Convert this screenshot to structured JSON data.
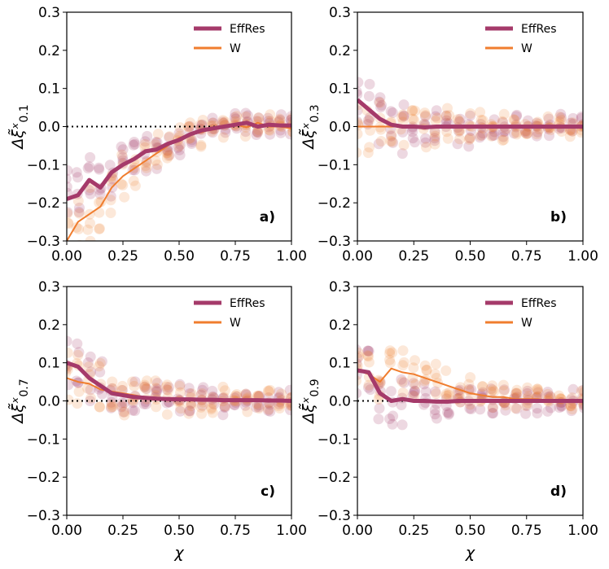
{
  "chart_data": [
    {
      "type": "scatter",
      "panel_label": "a)",
      "ylabel": "Δξ̃ˣ",
      "ylabel_sub": "0.1",
      "xlabel": "",
      "xlim": [
        0,
        1
      ],
      "ylim": [
        -0.3,
        0.3
      ],
      "xticks": [
        "0.00",
        "0.25",
        "0.50",
        "0.75",
        "1.00"
      ],
      "yticks": [
        "−0.3",
        "−0.2",
        "−0.1",
        "0.0",
        "0.1",
        "0.2",
        "0.3"
      ],
      "reference_line_y": 0,
      "legend_position": "top-right",
      "series": [
        {
          "name": "EffRes",
          "color": "#a53a6a",
          "x": [
            0,
            0.05,
            0.1,
            0.15,
            0.2,
            0.25,
            0.3,
            0.35,
            0.4,
            0.45,
            0.5,
            0.55,
            0.6,
            0.65,
            0.7,
            0.75,
            0.8,
            0.85,
            0.9,
            0.95,
            1.0
          ],
          "y": [
            -0.19,
            -0.18,
            -0.14,
            -0.16,
            -0.12,
            -0.1,
            -0.085,
            -0.065,
            -0.06,
            -0.045,
            -0.035,
            -0.02,
            -0.01,
            -0.005,
            0.0,
            0.005,
            0.01,
            0.0,
            0.005,
            0.003,
            0.003
          ]
        },
        {
          "name": "W",
          "color": "#f07d2e",
          "x": [
            0,
            0.05,
            0.1,
            0.15,
            0.2,
            0.25,
            0.3,
            0.35,
            0.4,
            0.45,
            0.5,
            0.55,
            0.6,
            0.65,
            0.7,
            0.75,
            0.8,
            0.85,
            0.9,
            0.95,
            1.0
          ],
          "y": [
            -0.3,
            -0.25,
            -0.23,
            -0.21,
            -0.16,
            -0.13,
            -0.11,
            -0.09,
            -0.07,
            -0.05,
            -0.03,
            -0.02,
            -0.015,
            -0.005,
            0.0,
            0.005,
            -0.002,
            0.01,
            0.0,
            0.0,
            -0.005
          ]
        }
      ]
    },
    {
      "type": "scatter",
      "panel_label": "b)",
      "ylabel": "Δξ̃ˣ",
      "ylabel_sub": "0.3",
      "xlabel": "",
      "xlim": [
        0,
        1
      ],
      "ylim": [
        -0.3,
        0.3
      ],
      "xticks": [
        "0.00",
        "0.25",
        "0.50",
        "0.75",
        "1.00"
      ],
      "yticks": [
        "−0.3",
        "−0.2",
        "−0.1",
        "0.0",
        "0.1",
        "0.2",
        "0.3"
      ],
      "reference_line_y": 0,
      "legend_position": "top-right",
      "series": [
        {
          "name": "EffRes",
          "color": "#a53a6a",
          "x": [
            0,
            0.05,
            0.1,
            0.15,
            0.2,
            0.25,
            0.3,
            0.35,
            0.4,
            0.45,
            0.5,
            0.55,
            0.6,
            0.65,
            0.7,
            0.75,
            0.8,
            0.85,
            0.9,
            0.95,
            1.0
          ],
          "y": [
            0.07,
            0.045,
            0.02,
            0.005,
            0.0,
            0.0,
            -0.002,
            0.0,
            0.0,
            0.0,
            0.0,
            0.0,
            0.0,
            0.0,
            0.0,
            0.0,
            0.0,
            0.0,
            0.0,
            0.0,
            0.0
          ]
        },
        {
          "name": "W",
          "color": "#f07d2e",
          "x": [
            0,
            0.05,
            0.1,
            0.15,
            0.2,
            0.25,
            0.3,
            0.35,
            0.4,
            0.45,
            0.5,
            0.55,
            0.6,
            0.65,
            0.7,
            0.75,
            0.8,
            0.85,
            0.9,
            0.95,
            1.0
          ],
          "y": [
            0.0,
            0.0,
            0.0,
            0.0,
            0.0,
            0.0,
            -0.005,
            0.0,
            -0.003,
            0.0,
            0.0,
            0.0,
            0.0,
            0.0,
            0.0,
            0.002,
            0.0,
            0.0,
            0.003,
            0.0,
            0.0
          ]
        }
      ]
    },
    {
      "type": "scatter",
      "panel_label": "c)",
      "ylabel": "Δξ̃ˣ",
      "ylabel_sub": "0.7",
      "xlabel": "χ",
      "xlim": [
        0,
        1
      ],
      "ylim": [
        -0.3,
        0.3
      ],
      "xticks": [
        "0.00",
        "0.25",
        "0.50",
        "0.75",
        "1.00"
      ],
      "yticks": [
        "−0.3",
        "−0.2",
        "−0.1",
        "0.0",
        "0.1",
        "0.2",
        "0.3"
      ],
      "reference_line_y": 0,
      "legend_position": "top-right",
      "series": [
        {
          "name": "EffRes",
          "color": "#a53a6a",
          "x": [
            0,
            0.05,
            0.1,
            0.15,
            0.2,
            0.25,
            0.3,
            0.35,
            0.4,
            0.45,
            0.5,
            0.55,
            0.6,
            0.65,
            0.7,
            0.75,
            0.8,
            0.85,
            0.9,
            0.95,
            1.0
          ],
          "y": [
            0.1,
            0.09,
            0.06,
            0.04,
            0.02,
            0.015,
            0.01,
            0.008,
            0.006,
            0.005,
            0.004,
            0.004,
            0.003,
            0.003,
            0.002,
            0.002,
            0.002,
            0.002,
            0.001,
            0.001,
            0.0
          ]
        },
        {
          "name": "W",
          "color": "#f07d2e",
          "x": [
            0,
            0.05,
            0.1,
            0.15,
            0.2,
            0.25,
            0.3,
            0.35,
            0.4,
            0.45,
            0.5,
            0.55,
            0.6,
            0.65,
            0.7,
            0.75,
            0.8,
            0.85,
            0.9,
            0.95,
            1.0
          ],
          "y": [
            0.06,
            0.05,
            0.045,
            0.03,
            0.025,
            0.02,
            0.015,
            0.01,
            0.008,
            0.005,
            0.004,
            0.003,
            0.003,
            0.002,
            0.002,
            0.001,
            0.001,
            0.0,
            0.0,
            0.0,
            0.0
          ]
        }
      ]
    },
    {
      "type": "scatter",
      "panel_label": "d)",
      "ylabel": "Δξ̃ˣ",
      "ylabel_sub": "0.9",
      "xlabel": "χ",
      "xlim": [
        0,
        1
      ],
      "ylim": [
        -0.3,
        0.3
      ],
      "xticks": [
        "0.00",
        "0.25",
        "0.50",
        "0.75",
        "1.00"
      ],
      "yticks": [
        "−0.3",
        "−0.2",
        "−0.1",
        "0.0",
        "0.1",
        "0.2",
        "0.3"
      ],
      "reference_line_y": 0,
      "legend_position": "top-right",
      "series": [
        {
          "name": "EffRes",
          "color": "#a53a6a",
          "x": [
            0,
            0.05,
            0.1,
            0.15,
            0.2,
            0.25,
            0.3,
            0.35,
            0.4,
            0.45,
            0.5,
            0.55,
            0.6,
            0.65,
            0.7,
            0.75,
            0.8,
            0.85,
            0.9,
            0.95,
            1.0
          ],
          "y": [
            0.08,
            0.075,
            0.02,
            0.0,
            0.005,
            0.0,
            0.0,
            -0.002,
            -0.002,
            0.0,
            0.0,
            0.0,
            0.0,
            0.0,
            0.0,
            0.0,
            0.0,
            0.0,
            0.0,
            0.0,
            0.0
          ]
        },
        {
          "name": "W",
          "color": "#f07d2e",
          "x": [
            0,
            0.05,
            0.1,
            0.15,
            0.2,
            0.25,
            0.3,
            0.35,
            0.4,
            0.45,
            0.5,
            0.55,
            0.6,
            0.65,
            0.7,
            0.75,
            0.8,
            0.85,
            0.9,
            0.95,
            1.0
          ],
          "y": [
            0.08,
            0.07,
            0.05,
            0.085,
            0.075,
            0.07,
            0.06,
            0.05,
            0.04,
            0.03,
            0.02,
            0.015,
            0.01,
            0.01,
            0.005,
            0.005,
            0.005,
            0.0,
            0.0,
            0.0,
            0.0
          ]
        }
      ]
    }
  ]
}
